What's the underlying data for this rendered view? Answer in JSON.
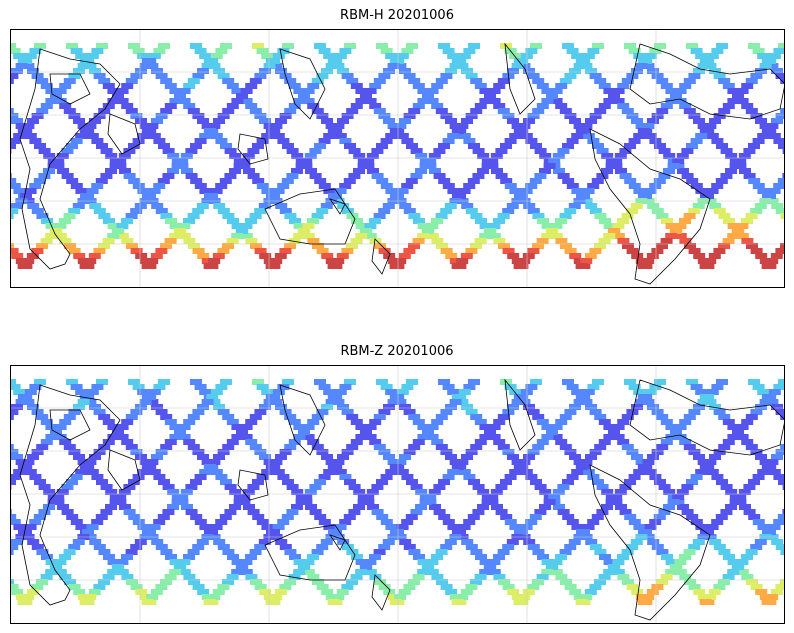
{
  "figure": {
    "panels": [
      {
        "id": "rbm-h",
        "title": "RBM-H 20201006",
        "south_intensity": 1.0,
        "north_intensity": 0.55
      },
      {
        "id": "rbm-z",
        "title": "RBM-Z 20201006",
        "south_intensity": 0.5,
        "north_intensity": 0.35
      }
    ]
  },
  "legend": {
    "colormap": [
      "#5555ee",
      "#5588ff",
      "#55ccee",
      "#88eeaa",
      "#ddee66",
      "#ffaa44",
      "#ee5544",
      "#cc4444"
    ]
  }
}
